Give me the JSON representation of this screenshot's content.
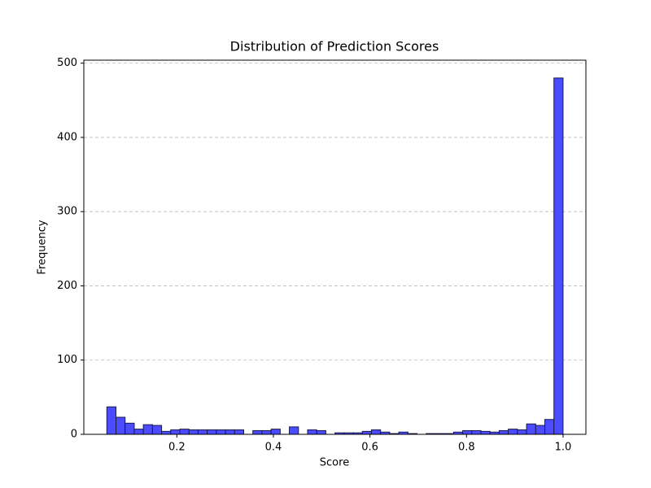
{
  "chart_data": {
    "type": "histogram",
    "title": "Distribution of Prediction Scores",
    "x_label": "Score",
    "y_label": "Frequency",
    "bins": [
      0.055,
      0.0739,
      0.0928,
      0.1117,
      0.1306,
      0.1495,
      0.1684,
      0.1873,
      0.2062,
      0.2251,
      0.244,
      0.2629,
      0.2818,
      0.3007,
      0.3196,
      0.3385,
      0.3574,
      0.3763,
      0.3952,
      0.4141,
      0.433,
      0.4519,
      0.4708,
      0.4897,
      0.5086,
      0.5275,
      0.5464,
      0.5653,
      0.5842,
      0.6031,
      0.622,
      0.6409,
      0.6598,
      0.6787,
      0.6976,
      0.7165,
      0.7354,
      0.7543,
      0.7732,
      0.7921,
      0.811,
      0.8299,
      0.8488,
      0.8677,
      0.8866,
      0.9055,
      0.9244,
      0.9433,
      0.9622,
      0.9811,
      1.0
    ],
    "counts": [
      37,
      23,
      15,
      7,
      13,
      12,
      4,
      6,
      7,
      6,
      6,
      6,
      6,
      6,
      6,
      0,
      5,
      5,
      7,
      0,
      10,
      0,
      6,
      5,
      0,
      2,
      2,
      2,
      4,
      6,
      3,
      1,
      3,
      1,
      0,
      1,
      1,
      1,
      3,
      5,
      5,
      4,
      3,
      5,
      7,
      6,
      14,
      12,
      20,
      480
    ],
    "color": "#4b4bff",
    "edge_color": "#1a1a4d",
    "xlim": [
      0.0073,
      1.0473
    ],
    "ylim": [
      0,
      504
    ],
    "xticks": [
      0.2,
      0.4,
      0.6,
      0.8,
      {
        "value": 1,
        "label": "1.0"
      }
    ],
    "yticks": [
      0,
      100,
      200,
      300,
      400,
      500
    ],
    "grid": "y"
  }
}
